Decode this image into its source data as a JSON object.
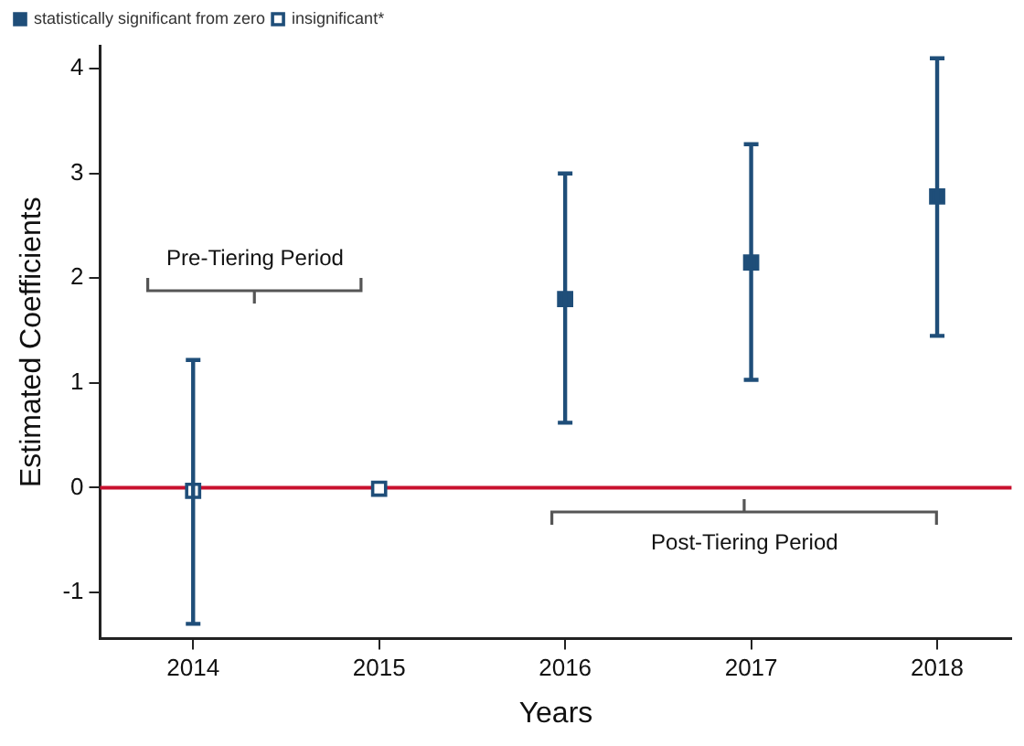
{
  "chart_data": {
    "type": "scatter",
    "xlabel": "Years",
    "ylabel": "Estimated Coefficients",
    "xlim": [
      2013.5,
      2018.4
    ],
    "xticks": [
      2014,
      2015,
      2016,
      2017,
      2018
    ],
    "ylim": [
      -1.44,
      4.22
    ],
    "yticks": [
      -1,
      0,
      1,
      2,
      3,
      4
    ],
    "grid": false,
    "legend": "top left",
    "marker": "square",
    "series": [
      {
        "name": "statistically significant from zero",
        "color": "#1f4e79",
        "x": [
          2016,
          2017,
          2018
        ],
        "values": [
          1.8,
          2.15,
          2.78
        ],
        "errors": [
          [
            0.62,
            3.0
          ],
          [
            1.03,
            3.28
          ],
          [
            1.45,
            4.1
          ]
        ]
      },
      {
        "name": "insignificant*",
        "color": "#1f4e79",
        "x": [
          2014,
          2015
        ],
        "values": [
          -0.03,
          -0.01
        ],
        "errors": [
          [
            -1.3,
            1.22
          ],
          null
        ]
      }
    ],
    "ref_lines": [
      {
        "axis": "y",
        "value": 0,
        "color": "#c8102e"
      }
    ],
    "annotations": [
      "Pre-Tiering Period",
      "Post-Tiering Period"
    ]
  }
}
